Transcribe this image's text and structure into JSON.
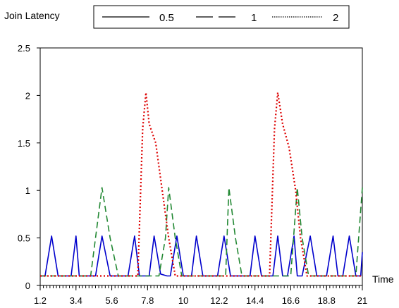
{
  "chart_data": {
    "type": "line",
    "ylabel": "Join Latency",
    "xlabel": "Time",
    "xlim": [
      1.2,
      21
    ],
    "ylim": [
      0,
      2.5
    ],
    "y_ticks": [
      "0",
      "0.5",
      "1",
      "1.5",
      "2",
      "2.5"
    ],
    "x_ticks": [
      "1.2",
      "3.4",
      "5.6",
      "7.8",
      "10",
      "12.2",
      "14.4",
      "16.6",
      "18.8",
      "21"
    ],
    "legend_position": "top",
    "series": [
      {
        "name": "0.5",
        "color": "#0000cc",
        "style": "solid",
        "x": [
          1.2,
          1.5,
          1.9,
          2.3,
          2.7,
          3.1,
          3.4,
          3.6,
          4.0,
          4.6,
          5.0,
          5.5,
          5.9,
          6.2,
          6.6,
          7.0,
          7.3,
          7.5,
          7.7,
          7.9,
          8.2,
          8.6,
          9.0,
          9.2,
          9.6,
          10.0,
          10.5,
          10.8,
          11.2,
          11.6,
          12.1,
          12.5,
          12.9,
          13.3,
          13.7,
          14.1,
          14.4,
          14.8,
          15.2,
          15.5,
          15.8,
          16.1,
          16.4,
          16.8,
          17.0,
          17.3,
          17.8,
          18.2,
          18.5,
          18.8,
          19.2,
          19.5,
          19.8,
          20.2,
          20.6,
          20.9,
          21.0
        ],
        "y": [
          0.1,
          0.1,
          0.52,
          0.1,
          0.1,
          0.1,
          0.52,
          0.1,
          0.1,
          0.1,
          0.52,
          0.1,
          0.1,
          0.1,
          0.1,
          0.52,
          0.1,
          0.1,
          0.1,
          0.1,
          0.52,
          0.12,
          0.1,
          0.1,
          0.52,
          0.1,
          0.1,
          0.52,
          0.1,
          0.1,
          0.1,
          0.52,
          0.1,
          0.1,
          0.1,
          0.1,
          0.52,
          0.1,
          0.1,
          0.1,
          0.52,
          0.1,
          0.1,
          0.52,
          0.1,
          0.1,
          0.52,
          0.1,
          0.1,
          0.1,
          0.52,
          0.1,
          0.1,
          0.52,
          0.1,
          0.1,
          0.35
        ]
      },
      {
        "name": "1",
        "color": "#228833",
        "style": "dashed",
        "x": [
          1.2,
          2.0,
          3.0,
          4.0,
          4.3,
          4.6,
          5.0,
          5.5,
          6.0,
          7.0,
          7.8,
          8.5,
          8.9,
          9.1,
          9.5,
          9.9,
          10.3,
          11.0,
          12.0,
          12.6,
          12.8,
          13.2,
          13.6,
          14.0,
          15.0,
          16.0,
          16.6,
          17.0,
          17.3,
          17.7,
          18.1,
          18.5,
          19.0,
          20.0,
          20.6,
          21.0
        ],
        "y": [
          0.1,
          0.1,
          0.1,
          0.1,
          0.1,
          0.5,
          1.03,
          0.5,
          0.1,
          0.1,
          0.1,
          0.1,
          0.5,
          1.03,
          0.5,
          0.1,
          0.1,
          0.1,
          0.1,
          0.1,
          1.03,
          0.5,
          0.1,
          0.1,
          0.1,
          0.1,
          0.1,
          1.03,
          0.5,
          0.1,
          0.1,
          0.1,
          0.1,
          0.1,
          0.1,
          1.03
        ]
      },
      {
        "name": "2",
        "color": "#dd0000",
        "style": "dotted",
        "x": [
          1.2,
          2.0,
          3.0,
          4.0,
          5.0,
          6.0,
          6.8,
          7.2,
          7.5,
          7.7,
          7.9,
          8.3,
          8.7,
          9.1,
          9.5,
          10.0,
          11.0,
          12.0,
          13.0,
          14.0,
          15.0,
          15.3,
          15.6,
          15.8,
          16.1,
          16.5,
          16.9,
          17.2,
          17.6,
          18.0,
          19.0,
          20.0,
          21.0
        ],
        "y": [
          0.1,
          0.1,
          0.1,
          0.1,
          0.1,
          0.1,
          0.1,
          0.1,
          1.65,
          2.03,
          1.7,
          1.5,
          1.0,
          0.5,
          0.1,
          0.1,
          0.1,
          0.1,
          0.1,
          0.1,
          0.1,
          0.1,
          1.65,
          2.03,
          1.7,
          1.45,
          1.0,
          0.5,
          0.1,
          0.1,
          0.1,
          0.1,
          0.1
        ]
      }
    ]
  }
}
